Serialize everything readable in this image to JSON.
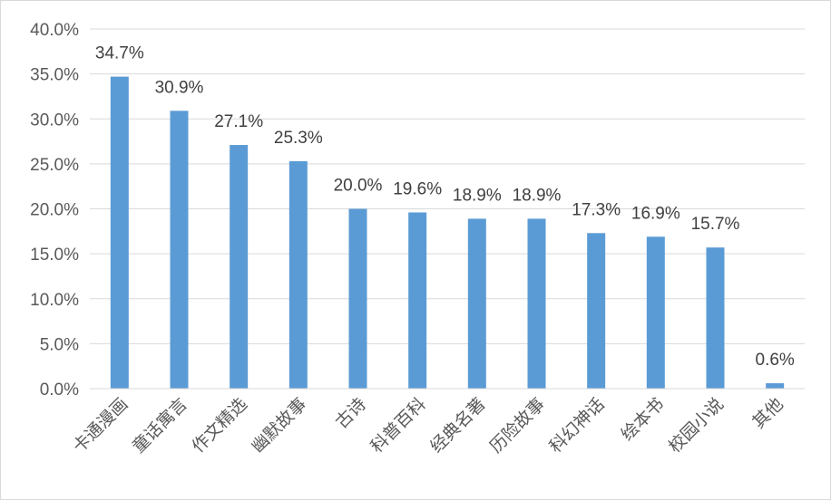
{
  "chart_data": {
    "type": "bar",
    "title": "",
    "xlabel": "",
    "ylabel": "",
    "ylim": [
      0,
      40
    ],
    "yticks": [
      "0.0%",
      "5.0%",
      "10.0%",
      "15.0%",
      "20.0%",
      "25.0%",
      "30.0%",
      "35.0%",
      "40.0%"
    ],
    "grid": true,
    "legend": "none",
    "bar_color": "#5b9bd5",
    "categories": [
      "卡通漫画",
      "童话寓言",
      "作文精选",
      "幽默故事",
      "古诗",
      "科普百科",
      "经典名著",
      "历险故事",
      "科幻神话",
      "绘本书",
      "校园小说",
      "其他"
    ],
    "values": [
      34.7,
      30.9,
      27.1,
      25.3,
      20.0,
      19.6,
      18.9,
      18.9,
      17.3,
      16.9,
      15.7,
      0.6
    ],
    "data_labels": [
      "34.7%",
      "30.9%",
      "27.1%",
      "25.3%",
      "20.0%",
      "19.6%",
      "18.9%",
      "18.9%",
      "17.3%",
      "16.9%",
      "15.7%",
      "0.6%"
    ]
  }
}
